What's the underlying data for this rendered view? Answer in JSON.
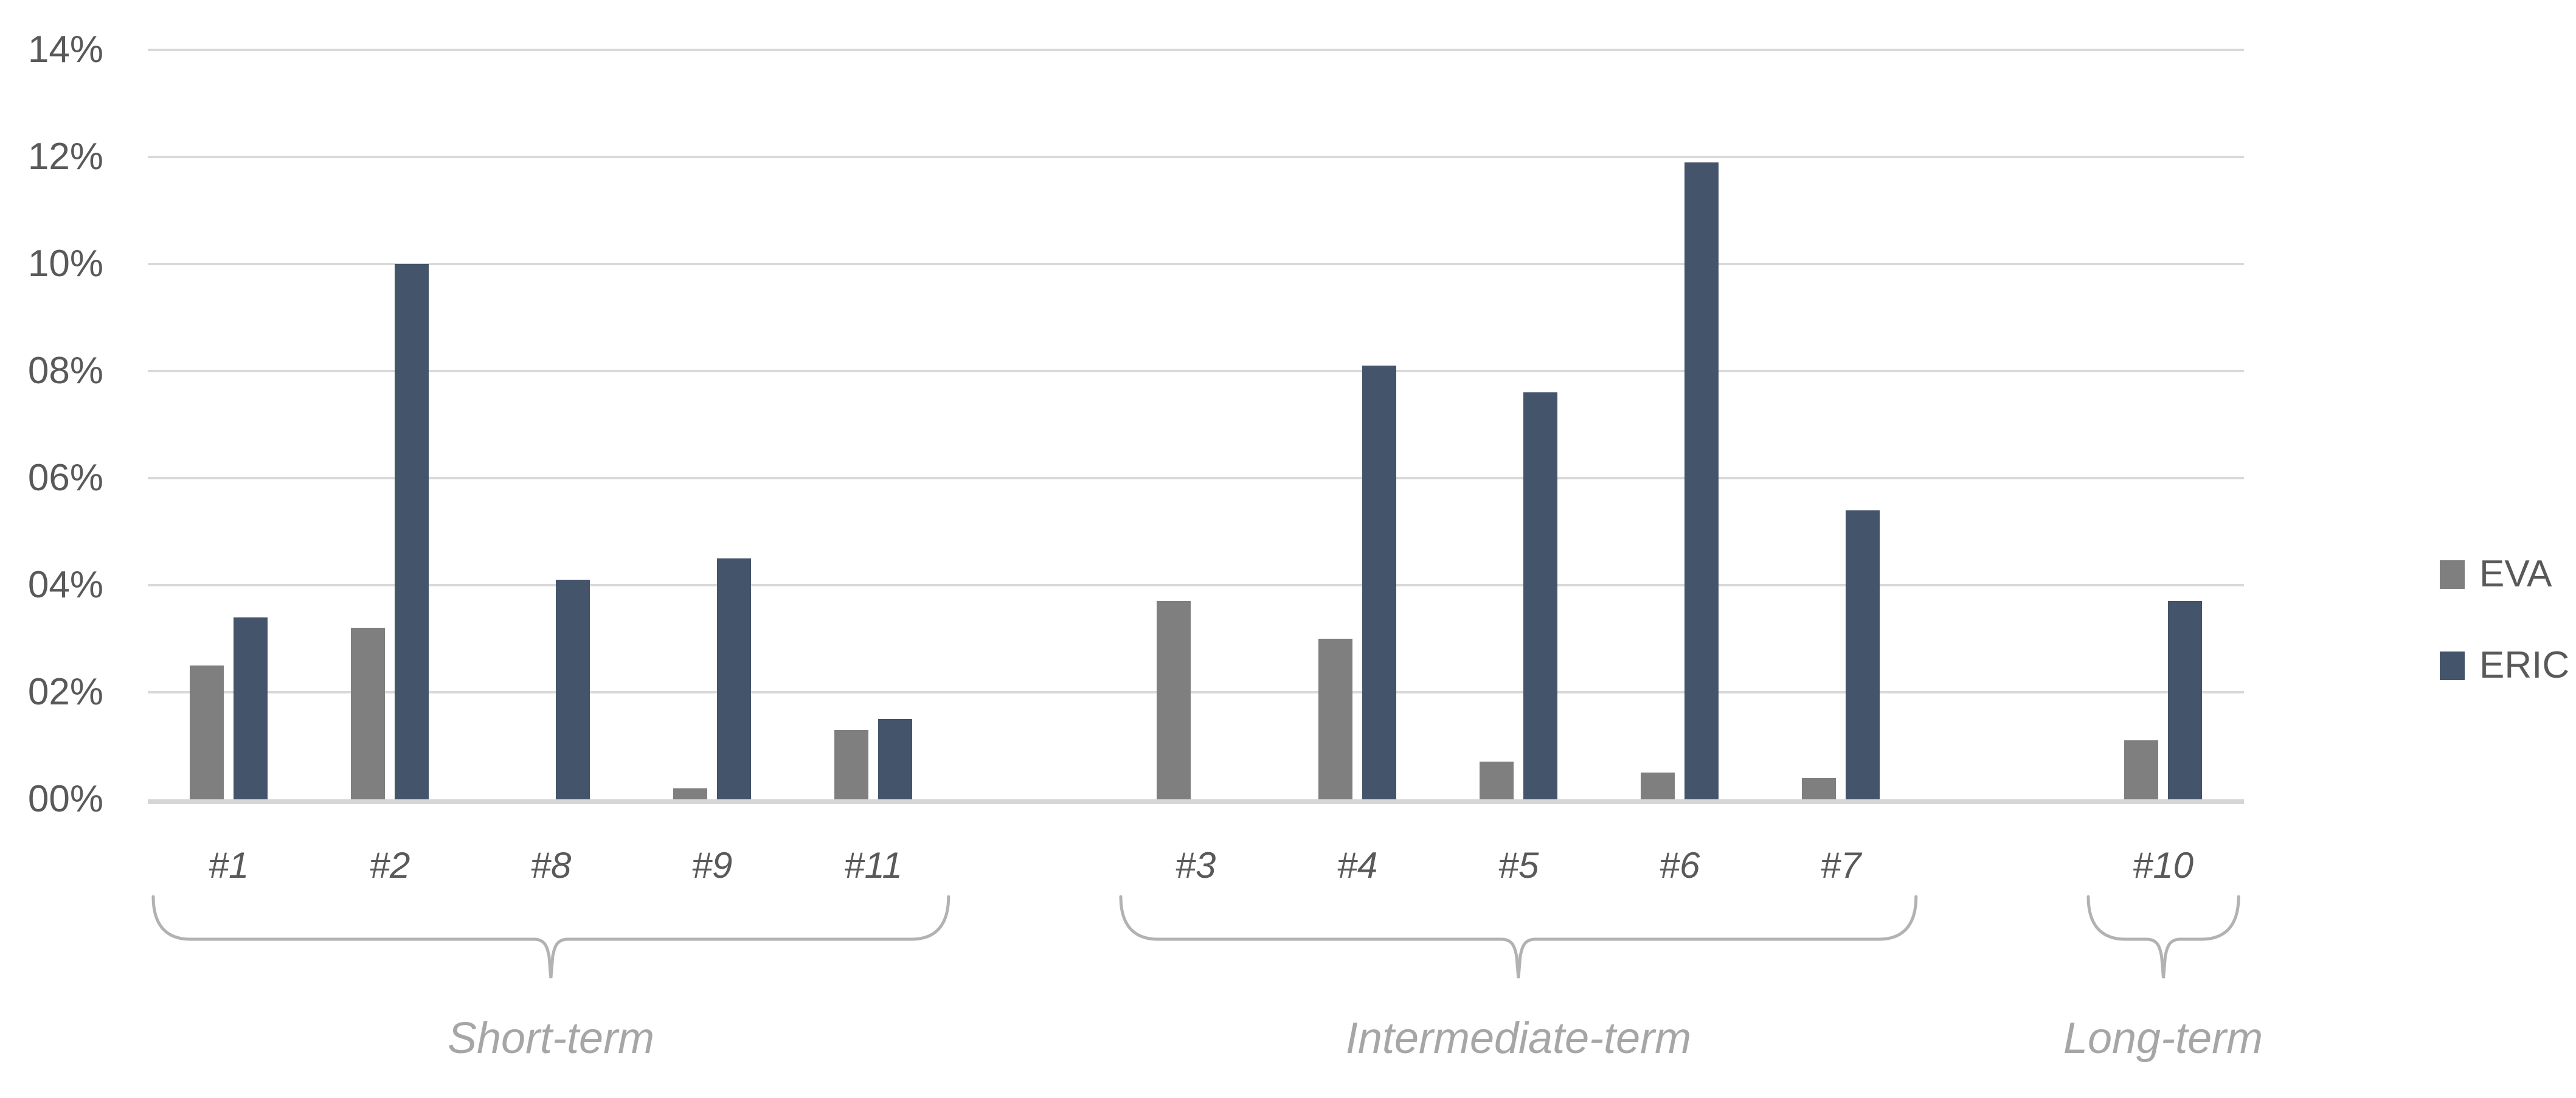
{
  "chart_data": {
    "type": "bar",
    "title": "",
    "xlabel": "",
    "ylabel": "",
    "y_ticks": [
      "00%",
      "02%",
      "04%",
      "06%",
      "08%",
      "10%",
      "12%",
      "14%"
    ],
    "ylim": [
      0,
      14
    ],
    "y_unit": "percent",
    "grid": true,
    "legend_position": "right",
    "series": [
      {
        "name": "EVA",
        "color": "#7F7F7F"
      },
      {
        "name": "ERIC",
        "color": "#44546A"
      }
    ],
    "total_slots": 13,
    "categories": [
      {
        "label": "#1",
        "slot": 0,
        "group": "Short-term",
        "EVA": 2.5,
        "ERIC": 3.4
      },
      {
        "label": "#2",
        "slot": 1,
        "group": "Short-term",
        "EVA": 3.2,
        "ERIC": 10.0
      },
      {
        "label": "#8",
        "slot": 2,
        "group": "Short-term",
        "EVA": null,
        "ERIC": 4.1
      },
      {
        "label": "#9",
        "slot": 3,
        "group": "Short-term",
        "EVA": 0.2,
        "ERIC": 4.5
      },
      {
        "label": "#11",
        "slot": 4,
        "group": "Short-term",
        "EVA": 1.3,
        "ERIC": 1.5
      },
      {
        "label": "#3",
        "slot": 6,
        "group": "Intermediate-term",
        "EVA": 3.7,
        "ERIC": null
      },
      {
        "label": "#4",
        "slot": 7,
        "group": "Intermediate-term",
        "EVA": 3.0,
        "ERIC": 8.1
      },
      {
        "label": "#5",
        "slot": 8,
        "group": "Intermediate-term",
        "EVA": 0.7,
        "ERIC": 7.6
      },
      {
        "label": "#6",
        "slot": 9,
        "group": "Intermediate-term",
        "EVA": 0.5,
        "ERIC": 11.9
      },
      {
        "label": "#7",
        "slot": 10,
        "group": "Intermediate-term",
        "EVA": 0.4,
        "ERIC": 5.4
      },
      {
        "label": "#10",
        "slot": 12,
        "group": "Long-term",
        "EVA": 1.1,
        "ERIC": 3.7
      }
    ],
    "groups": [
      {
        "label": "Short-term",
        "from_slot": 0,
        "to_slot": 4
      },
      {
        "label": "Intermediate-term",
        "from_slot": 6,
        "to_slot": 10
      },
      {
        "label": "Long-term",
        "from_slot": 12,
        "to_slot": 12
      }
    ],
    "colors": {
      "gridline": "#d9d9d9",
      "axis_line": "#d6d6d6",
      "tick_label": "#595959",
      "category_label": "#595959",
      "group_label": "#a6a6a6",
      "brace": "#b2b2b2",
      "background": "#ffffff"
    }
  }
}
